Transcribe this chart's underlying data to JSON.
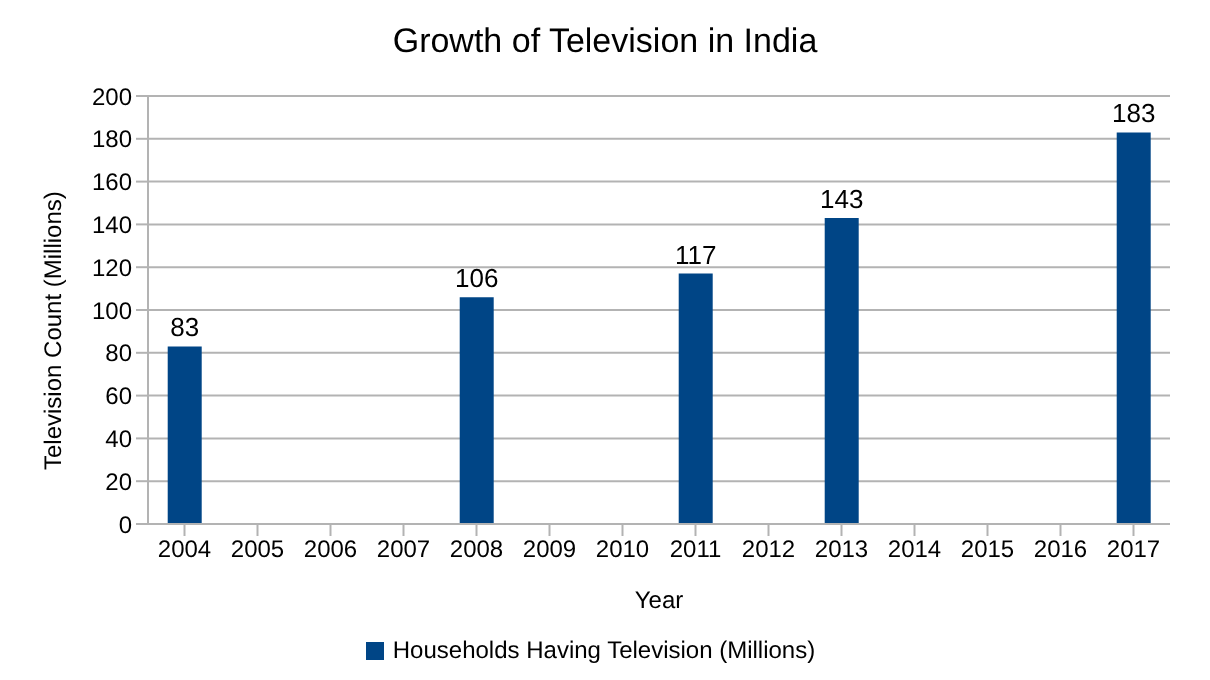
{
  "chart_data": {
    "type": "bar",
    "title": "Growth of Television in India",
    "xlabel": "Year",
    "ylabel": "Television Count (Millions)",
    "categories": [
      "2004",
      "2005",
      "2006",
      "2007",
      "2008",
      "2009",
      "2010",
      "2011",
      "2012",
      "2013",
      "2014",
      "2015",
      "2016",
      "2017"
    ],
    "series": [
      {
        "name": "Households Having Television (Millions)",
        "color": "#004586",
        "values": [
          83,
          null,
          null,
          null,
          106,
          null,
          null,
          117,
          null,
          143,
          null,
          null,
          null,
          183
        ]
      }
    ],
    "ylim": [
      0,
      200
    ],
    "yticks": [
      0,
      20,
      40,
      60,
      80,
      100,
      120,
      140,
      160,
      180,
      200
    ],
    "grid": "y",
    "legend": "bottom",
    "data_labels": true
  }
}
